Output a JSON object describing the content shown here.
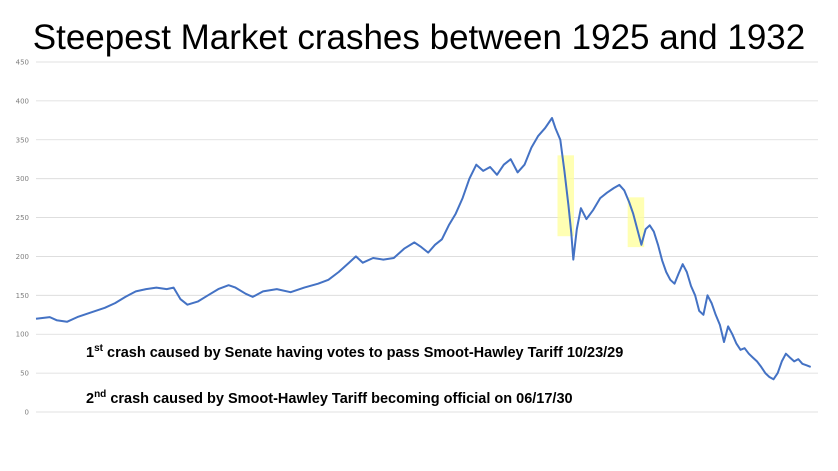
{
  "chart_data": {
    "type": "line",
    "title": "Steepest Market crashes between 1925 and 1932",
    "xlabel": "",
    "ylabel": "",
    "ylim": [
      0,
      450
    ],
    "yticks": [
      0,
      50,
      100,
      150,
      200,
      250,
      300,
      350,
      400,
      450
    ],
    "grid": true,
    "x_range": [
      "1925",
      "1932"
    ],
    "series": [
      {
        "color": "#4472c4",
        "points": [
          {
            "x": 0.0,
            "y": 120
          },
          {
            "x": 0.02,
            "y": 122
          },
          {
            "x": 0.03,
            "y": 118
          },
          {
            "x": 0.045,
            "y": 116
          },
          {
            "x": 0.06,
            "y": 122
          },
          {
            "x": 0.08,
            "y": 128
          },
          {
            "x": 0.1,
            "y": 134
          },
          {
            "x": 0.115,
            "y": 140
          },
          {
            "x": 0.13,
            "y": 148
          },
          {
            "x": 0.145,
            "y": 155
          },
          {
            "x": 0.16,
            "y": 158
          },
          {
            "x": 0.175,
            "y": 160
          },
          {
            "x": 0.19,
            "y": 158
          },
          {
            "x": 0.2,
            "y": 160
          },
          {
            "x": 0.21,
            "y": 145
          },
          {
            "x": 0.22,
            "y": 138
          },
          {
            "x": 0.235,
            "y": 142
          },
          {
            "x": 0.25,
            "y": 150
          },
          {
            "x": 0.265,
            "y": 158
          },
          {
            "x": 0.28,
            "y": 163
          },
          {
            "x": 0.29,
            "y": 160
          },
          {
            "x": 0.305,
            "y": 152
          },
          {
            "x": 0.315,
            "y": 148
          },
          {
            "x": 0.33,
            "y": 155
          },
          {
            "x": 0.35,
            "y": 158
          },
          {
            "x": 0.37,
            "y": 154
          },
          {
            "x": 0.39,
            "y": 160
          },
          {
            "x": 0.41,
            "y": 165
          },
          {
            "x": 0.425,
            "y": 170
          },
          {
            "x": 0.44,
            "y": 180
          },
          {
            "x": 0.455,
            "y": 192
          },
          {
            "x": 0.465,
            "y": 200
          },
          {
            "x": 0.475,
            "y": 192
          },
          {
            "x": 0.49,
            "y": 198
          },
          {
            "x": 0.505,
            "y": 196
          },
          {
            "x": 0.52,
            "y": 198
          },
          {
            "x": 0.535,
            "y": 210
          },
          {
            "x": 0.55,
            "y": 218
          },
          {
            "x": 0.56,
            "y": 212
          },
          {
            "x": 0.57,
            "y": 205
          },
          {
            "x": 0.58,
            "y": 215
          },
          {
            "x": 0.59,
            "y": 222
          },
          {
            "x": 0.6,
            "y": 240
          },
          {
            "x": 0.61,
            "y": 255
          },
          {
            "x": 0.62,
            "y": 275
          },
          {
            "x": 0.63,
            "y": 300
          },
          {
            "x": 0.64,
            "y": 318
          },
          {
            "x": 0.65,
            "y": 310
          },
          {
            "x": 0.66,
            "y": 315
          },
          {
            "x": 0.67,
            "y": 305
          },
          {
            "x": 0.68,
            "y": 318
          },
          {
            "x": 0.69,
            "y": 325
          },
          {
            "x": 0.7,
            "y": 308
          },
          {
            "x": 0.71,
            "y": 318
          },
          {
            "x": 0.72,
            "y": 340
          },
          {
            "x": 0.73,
            "y": 355
          },
          {
            "x": 0.74,
            "y": 365
          },
          {
            "x": 0.75,
            "y": 378
          },
          {
            "x": 0.755,
            "y": 365
          },
          {
            "x": 0.762,
            "y": 350
          },
          {
            "x": 0.768,
            "y": 310
          },
          {
            "x": 0.774,
            "y": 265
          },
          {
            "x": 0.778,
            "y": 230
          },
          {
            "x": 0.781,
            "y": 196
          },
          {
            "x": 0.786,
            "y": 235
          },
          {
            "x": 0.792,
            "y": 262
          },
          {
            "x": 0.8,
            "y": 248
          },
          {
            "x": 0.81,
            "y": 260
          },
          {
            "x": 0.82,
            "y": 275
          },
          {
            "x": 0.83,
            "y": 282
          },
          {
            "x": 0.84,
            "y": 288
          },
          {
            "x": 0.848,
            "y": 292
          },
          {
            "x": 0.855,
            "y": 285
          },
          {
            "x": 0.862,
            "y": 270
          },
          {
            "x": 0.868,
            "y": 255
          },
          {
            "x": 0.874,
            "y": 235
          },
          {
            "x": 0.88,
            "y": 215
          },
          {
            "x": 0.886,
            "y": 235
          },
          {
            "x": 0.892,
            "y": 240
          },
          {
            "x": 0.898,
            "y": 232
          },
          {
            "x": 0.904,
            "y": 215
          },
          {
            "x": 0.91,
            "y": 195
          },
          {
            "x": 0.916,
            "y": 180
          },
          {
            "x": 0.922,
            "y": 170
          },
          {
            "x": 0.928,
            "y": 165
          },
          {
            "x": 0.934,
            "y": 178
          },
          {
            "x": 0.94,
            "y": 190
          },
          {
            "x": 0.946,
            "y": 180
          },
          {
            "x": 0.952,
            "y": 162
          },
          {
            "x": 0.958,
            "y": 150
          },
          {
            "x": 0.964,
            "y": 130
          },
          {
            "x": 0.97,
            "y": 125
          },
          {
            "x": 0.976,
            "y": 150
          },
          {
            "x": 0.982,
            "y": 140
          },
          {
            "x": 0.988,
            "y": 125
          },
          {
            "x": 0.994,
            "y": 112
          },
          {
            "x": 1.0,
            "y": 90
          },
          {
            "x": 1.006,
            "y": 110
          },
          {
            "x": 1.012,
            "y": 100
          },
          {
            "x": 1.018,
            "y": 88
          },
          {
            "x": 1.024,
            "y": 80
          },
          {
            "x": 1.03,
            "y": 82
          },
          {
            "x": 1.036,
            "y": 75
          },
          {
            "x": 1.042,
            "y": 70
          },
          {
            "x": 1.048,
            "y": 65
          },
          {
            "x": 1.054,
            "y": 58
          },
          {
            "x": 1.06,
            "y": 50
          },
          {
            "x": 1.066,
            "y": 45
          },
          {
            "x": 1.072,
            "y": 42
          },
          {
            "x": 1.078,
            "y": 50
          },
          {
            "x": 1.084,
            "y": 65
          },
          {
            "x": 1.09,
            "y": 75
          },
          {
            "x": 1.096,
            "y": 70
          },
          {
            "x": 1.102,
            "y": 65
          },
          {
            "x": 1.108,
            "y": 68
          },
          {
            "x": 1.114,
            "y": 62
          },
          {
            "x": 1.12,
            "y": 60
          },
          {
            "x": 1.126,
            "y": 58
          }
        ]
      }
    ],
    "highlights": [
      {
        "x_from": 0.758,
        "x_to": 0.782,
        "y_from": 226,
        "y_to": 330,
        "color": "#ffff99"
      },
      {
        "x_from": 0.86,
        "x_to": 0.884,
        "y_from": 212,
        "y_to": 276,
        "color": "#ffff99"
      }
    ],
    "annotations": [
      {
        "sup": "st",
        "num": "1",
        "text": " crash caused by Senate having votes to pass Smoot-Hawley Tariff 10/23/29"
      },
      {
        "sup": "nd",
        "num": "2",
        "text": " crash caused by Smoot-Hawley Tariff becoming official on 06/17/30"
      }
    ]
  }
}
